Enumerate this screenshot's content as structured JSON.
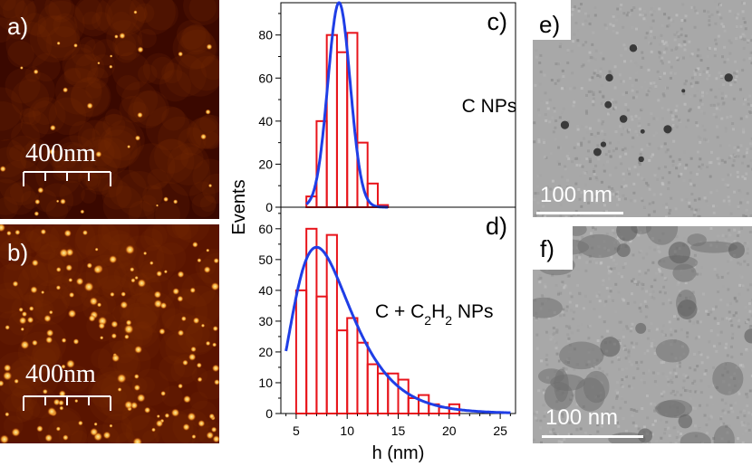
{
  "panels": {
    "a": {
      "label": "a)",
      "scale_text": "400nm"
    },
    "b": {
      "label": "b)",
      "scale_text": "400nm"
    },
    "e": {
      "label": "e)",
      "scale_text": "100 nm"
    },
    "f": {
      "label": "f)",
      "scale_text": "100 nm"
    }
  },
  "colors": {
    "bars": "#e8141b",
    "fit": "#1f3ee6",
    "afm_dark": "#3a0800",
    "afm_bright": "#fff0a0",
    "tem_gray": "#a8a8a8"
  },
  "chart_data": [
    {
      "type": "bar",
      "panel": "c)",
      "annotation": "C NPs",
      "ylabel": "Events",
      "ylim": [
        0,
        95
      ],
      "yticks": [
        0,
        20,
        40,
        60,
        80
      ],
      "bin_width": 1,
      "bins_left": [
        6,
        7,
        8,
        9,
        10,
        11,
        12,
        13
      ],
      "values": [
        5,
        40,
        80,
        72,
        81,
        30,
        11,
        1
      ],
      "fit": {
        "type": "gaussian",
        "peak": 95,
        "center": 9.2,
        "sigma": 1.1
      }
    },
    {
      "type": "bar",
      "panel": "d)",
      "annotation": "C + C2H2 NPs",
      "xlabel": "h (nm)",
      "ylabel": "Events",
      "xlim": [
        3.5,
        26.5
      ],
      "xticks": [
        5,
        10,
        15,
        20,
        25
      ],
      "ylim": [
        0,
        67
      ],
      "yticks": [
        0,
        10,
        20,
        30,
        40,
        50,
        60
      ],
      "bin_width": 1,
      "bins_left": [
        5,
        6,
        7,
        8,
        9,
        10,
        11,
        12,
        13,
        14,
        15,
        16,
        17,
        18,
        19,
        20
      ],
      "values": [
        40,
        60,
        38,
        58,
        27,
        31,
        23,
        16,
        13,
        13,
        11,
        5,
        6,
        3,
        2,
        3
      ],
      "fit": {
        "type": "lognormal",
        "peak": 54,
        "mode": 7,
        "w": 0.4
      }
    }
  ]
}
